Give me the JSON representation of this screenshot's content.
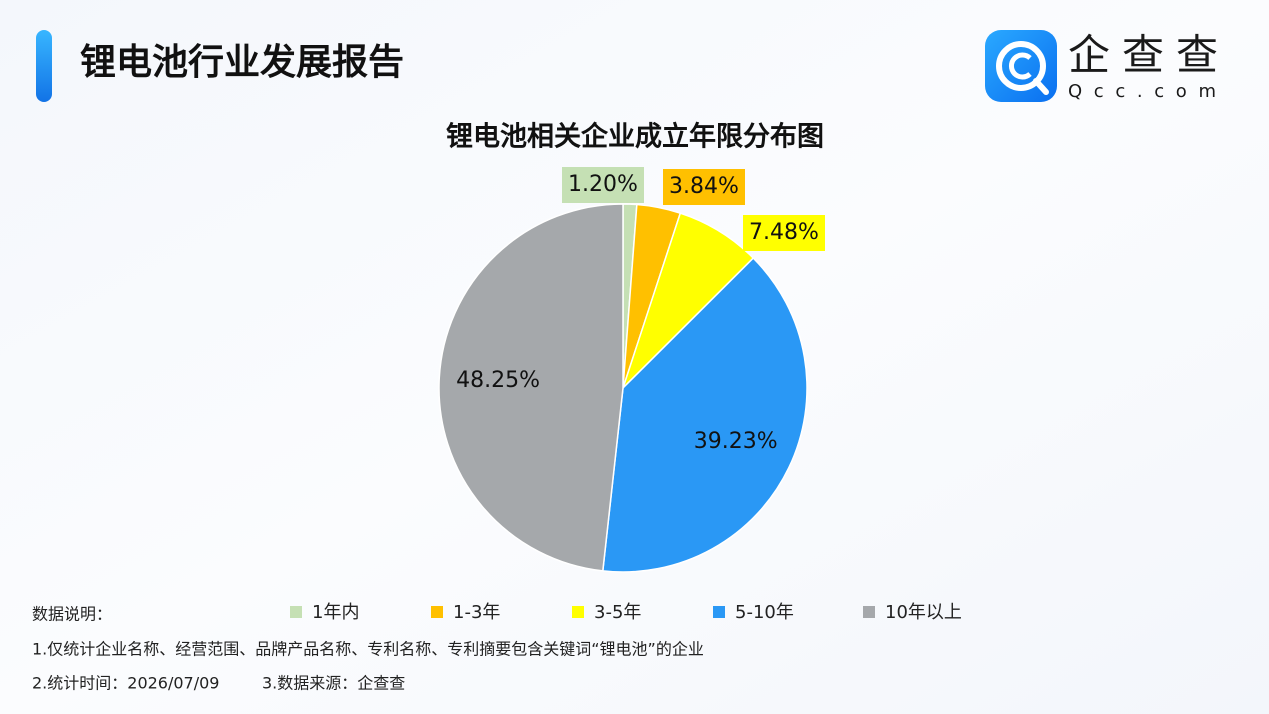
{
  "header": {
    "title": "锂电池行业发展报告",
    "brand": "企查查",
    "brand_url": "Qcc.com"
  },
  "chart_data": {
    "type": "pie",
    "title": "锂电池相关企业成立年限分布图",
    "categories": [
      "1年内",
      "1-3年",
      "3-5年",
      "5-10年",
      "10年以上"
    ],
    "values": [
      1.2,
      3.84,
      7.48,
      39.23,
      48.25
    ],
    "value_labels": [
      "1.20%",
      "3.84%",
      "7.48%",
      "39.23%",
      "48.25%"
    ],
    "colors": [
      "#c5e0b4",
      "#ffc000",
      "#ffff00",
      "#2a98f5",
      "#a5a8ab"
    ],
    "legend": "bottom"
  },
  "notes": {
    "heading": "数据说明：",
    "line1": "1.仅统计企业名称、经营范围、品牌产品名称、专利名称、专利摘要包含关键词“锂电池”的企业",
    "line2a": "2.统计时间：2026/07/09",
    "line2b": "3.数据来源：企查查"
  }
}
